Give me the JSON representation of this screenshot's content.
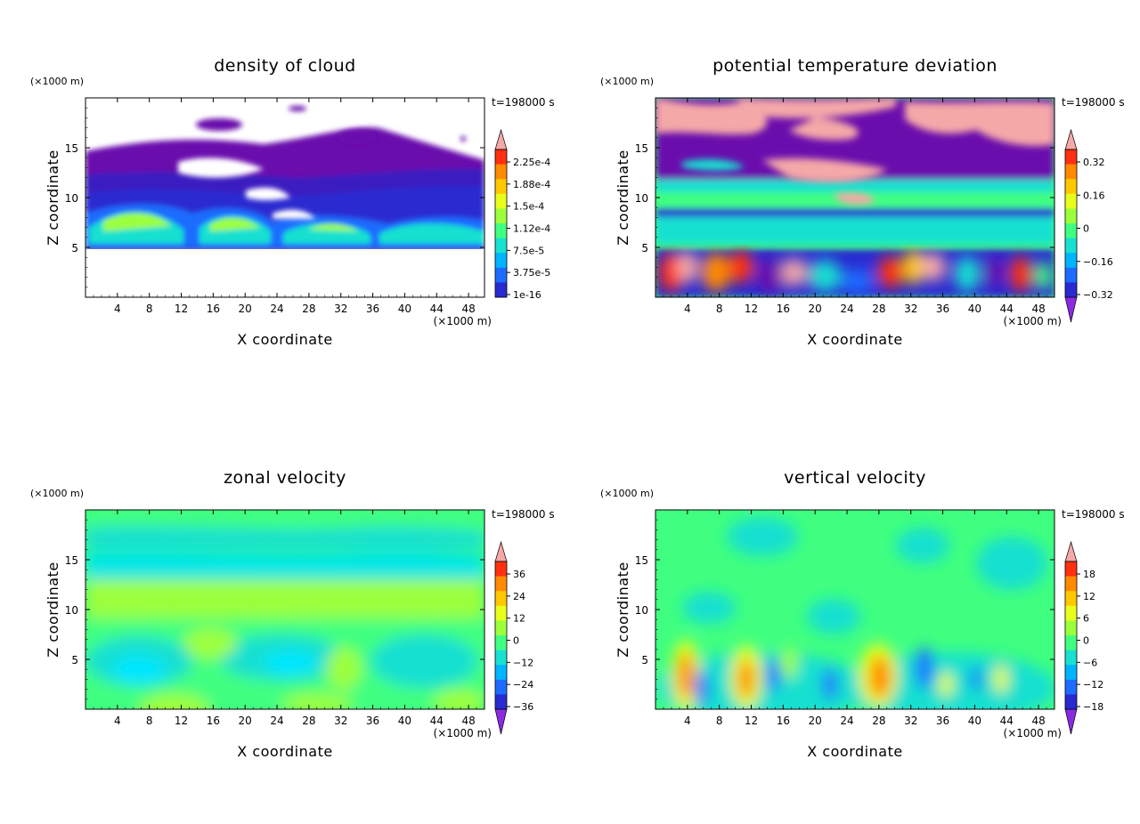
{
  "chart_data": [
    {
      "type": "heatmap",
      "title": "density of cloud",
      "xlabel": "X coordinate",
      "ylabel": "Z coordinate",
      "x_unit": "(×1000 m)",
      "y_unit": "(×1000 m)",
      "time_label": "t=198000 s",
      "xlim": [
        0,
        50
      ],
      "ylim": [
        0,
        20
      ],
      "x_ticks": [
        4,
        8,
        12,
        16,
        20,
        24,
        28,
        32,
        36,
        40,
        44,
        48
      ],
      "y_ticks": [
        5,
        10,
        15
      ],
      "colorbar_labels": [
        "2.25e-4",
        "1.88e-4",
        "1.5e-4",
        "1.12e-4",
        "7.5e-5",
        "3.75e-5",
        "1e-16"
      ],
      "colorbar_arrows": "top"
    },
    {
      "type": "heatmap",
      "title": "potential temperature deviation",
      "xlabel": "X coordinate",
      "ylabel": "Z coordinate",
      "x_unit": "(×1000 m)",
      "y_unit": "(×1000 m)",
      "time_label": "t=198000 s",
      "xlim": [
        0,
        50
      ],
      "ylim": [
        0,
        20
      ],
      "x_ticks": [
        4,
        8,
        12,
        16,
        20,
        24,
        28,
        32,
        36,
        40,
        44,
        48
      ],
      "y_ticks": [
        5,
        10,
        15
      ],
      "colorbar_labels": [
        "0.32",
        "0.16",
        "0",
        "−0.16",
        "−0.32"
      ],
      "colorbar_arrows": "both"
    },
    {
      "type": "heatmap",
      "title": "zonal velocity",
      "xlabel": "X coordinate",
      "ylabel": "Z coordinate",
      "x_unit": "(×1000 m)",
      "y_unit": "(×1000 m)",
      "time_label": "t=198000 s",
      "xlim": [
        0,
        50
      ],
      "ylim": [
        0,
        20
      ],
      "x_ticks": [
        4,
        8,
        12,
        16,
        20,
        24,
        28,
        32,
        36,
        40,
        44,
        48
      ],
      "y_ticks": [
        5,
        10,
        15
      ],
      "colorbar_labels": [
        "36",
        "24",
        "12",
        "0",
        "−12",
        "−24",
        "−36"
      ],
      "colorbar_arrows": "both"
    },
    {
      "type": "heatmap",
      "title": "vertical velocity",
      "xlabel": "X coordinate",
      "ylabel": "Z coordinate",
      "x_unit": "(×1000 m)",
      "y_unit": "(×1000 m)",
      "time_label": "t=198000 s",
      "xlim": [
        0,
        50
      ],
      "ylim": [
        0,
        20
      ],
      "x_ticks": [
        4,
        8,
        12,
        16,
        20,
        24,
        28,
        32,
        36,
        40,
        44,
        48
      ],
      "y_ticks": [
        5,
        10,
        15
      ],
      "colorbar_labels": [
        "18",
        "12",
        "6",
        "0",
        "−6",
        "−12",
        "−18"
      ],
      "colorbar_arrows": "both"
    }
  ],
  "palette": [
    "#6a0dad",
    "#2a2ad0",
    "#1e6cff",
    "#00b4ff",
    "#19e0d0",
    "#40ff80",
    "#9cff3c",
    "#e8ff1e",
    "#ffc800",
    "#ff8a00",
    "#ff3010",
    "#f4a8a8"
  ]
}
